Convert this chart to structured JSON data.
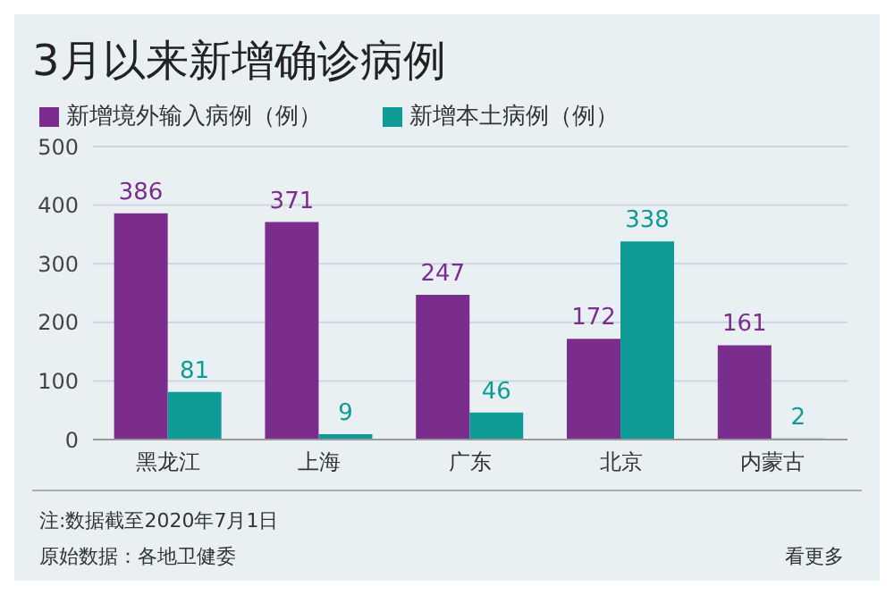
{
  "chart_data": {
    "type": "bar",
    "title": "3月以来新增确诊病例",
    "categories": [
      "黑龙江",
      "上海",
      "广东",
      "北京",
      "内蒙古"
    ],
    "series": [
      {
        "name": "新增境外输入病例（例）",
        "color": "#7b2d8e",
        "values": [
          386,
          371,
          247,
          172,
          161
        ]
      },
      {
        "name": "新增本土病例（例）",
        "color": "#0e9a96",
        "values": [
          81,
          9,
          46,
          338,
          2
        ]
      }
    ],
    "ylim": [
      0,
      500
    ],
    "yticks": [
      0,
      100,
      200,
      300,
      400,
      500
    ],
    "grid": "y",
    "legend": "top left",
    "data_labels": true,
    "annotations": [
      "注:数据截至2020年7月1日",
      "原始数据：各地卫健委",
      "看更多"
    ]
  }
}
